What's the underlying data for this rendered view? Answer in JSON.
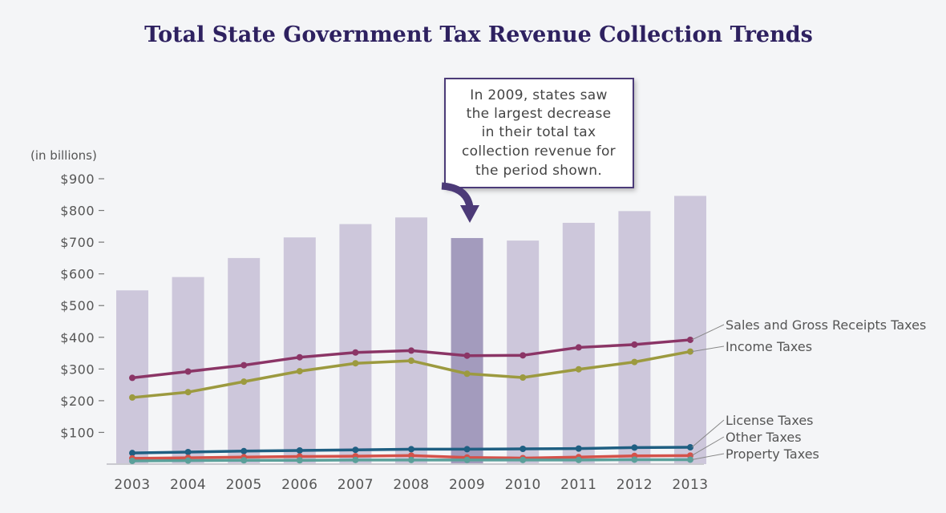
{
  "chart_data": {
    "type": "bar",
    "title": "Total State Government Tax Revenue Collection Trends",
    "ylabel": "(in billions)",
    "ylim": [
      0,
      900
    ],
    "y_ticks": [
      "$100",
      "$200",
      "$300",
      "$400",
      "$500",
      "$600",
      "$700",
      "$800",
      "$900"
    ],
    "y_tick_values": [
      100,
      200,
      300,
      400,
      500,
      600,
      700,
      800,
      900
    ],
    "categories": [
      "2003",
      "2004",
      "2005",
      "2006",
      "2007",
      "2008",
      "2009",
      "2010",
      "2011",
      "2012",
      "2013"
    ],
    "bars": {
      "values": [
        548,
        590,
        650,
        715,
        757,
        778,
        713,
        705,
        761,
        798,
        846
      ],
      "color": "#cdc7db",
      "highlight_category": "2009",
      "highlight_color": "#a39bbd"
    },
    "series": [
      {
        "name": "Sales and Gross Receipts Taxes",
        "color": "#8b3566",
        "values": [
          272,
          292,
          312,
          337,
          352,
          358,
          342,
          343,
          368,
          377,
          392
        ]
      },
      {
        "name": "Income Taxes",
        "color": "#9c9a3f",
        "values": [
          210,
          227,
          260,
          293,
          318,
          326,
          285,
          273,
          299,
          322,
          355
        ]
      },
      {
        "name": "License Taxes",
        "color": "#1f5f82",
        "values": [
          35,
          38,
          41,
          43,
          45,
          47,
          47,
          48,
          49,
          52,
          53
        ]
      },
      {
        "name": "Other Taxes",
        "color": "#d4524a",
        "values": [
          18,
          20,
          22,
          24,
          25,
          27,
          21,
          19,
          22,
          26,
          27
        ]
      },
      {
        "name": "Property Taxes",
        "color": "#5ba09a",
        "values": [
          10,
          11,
          12,
          12,
          13,
          13,
          13,
          13,
          13,
          14,
          14
        ]
      }
    ],
    "annotation": {
      "lines": [
        "In 2009, states saw",
        "the largest decrease",
        "in their total tax",
        "collection revenue for",
        "the period shown."
      ],
      "arrow_color": "#4c3a78"
    },
    "grid": false,
    "legend": "right, labels at line ends"
  }
}
